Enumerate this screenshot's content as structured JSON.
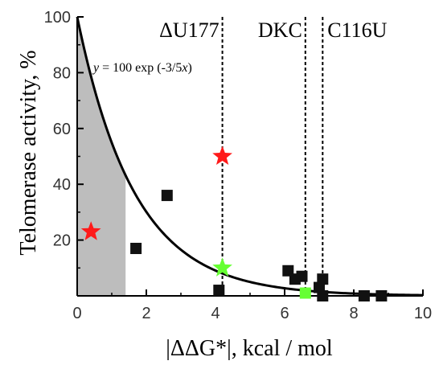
{
  "chart_data": {
    "type": "scatter",
    "xlabel": "|ΔΔG*|, kcal / mol",
    "ylabel": "Telomerase activity, %",
    "xlim": [
      0,
      10
    ],
    "ylim": [
      0,
      100
    ],
    "xticks": [
      0,
      2,
      4,
      6,
      8,
      10
    ],
    "yticks": [
      20,
      40,
      60,
      80,
      100
    ],
    "y_tick_labels": [
      "20",
      "40",
      "60",
      "80",
      "100"
    ],
    "x_tick_labels": [
      "0",
      "2",
      "4",
      "6",
      "8",
      "10"
    ],
    "curve": {
      "label": "y = 100 exp (-3/5x)",
      "formula_parts": [
        "y",
        " = 100 exp (-3/5",
        "x",
        ")"
      ],
      "k": 0.6,
      "color": "#000000"
    },
    "shaded_region": {
      "x_from": 0,
      "x_to": 1.4,
      "color": "#bdbdbd"
    },
    "vertical_lines": [
      {
        "x": 4.2,
        "label": "ΔU177"
      },
      {
        "x": 6.6,
        "label": "DKC"
      },
      {
        "x": 7.1,
        "label": "C116U"
      }
    ],
    "series": [
      {
        "marker": "square",
        "color": "#111111",
        "points": [
          [
            1.7,
            17
          ],
          [
            2.6,
            36
          ],
          [
            4.1,
            2
          ],
          [
            6.1,
            9
          ],
          [
            6.3,
            6
          ],
          [
            6.5,
            7
          ],
          [
            7.0,
            3
          ],
          [
            7.1,
            6
          ],
          [
            7.1,
            0
          ],
          [
            8.3,
            0
          ],
          [
            8.8,
            0
          ]
        ]
      },
      {
        "marker": "star",
        "color": "#ff1a1a",
        "points": [
          [
            0.4,
            23
          ],
          [
            4.2,
            50
          ]
        ]
      },
      {
        "marker": "star",
        "color": "#66ff33",
        "points": [
          [
            4.2,
            10
          ]
        ]
      },
      {
        "marker": "square",
        "color": "#66ff33",
        "points": [
          [
            6.6,
            1
          ]
        ]
      }
    ]
  }
}
